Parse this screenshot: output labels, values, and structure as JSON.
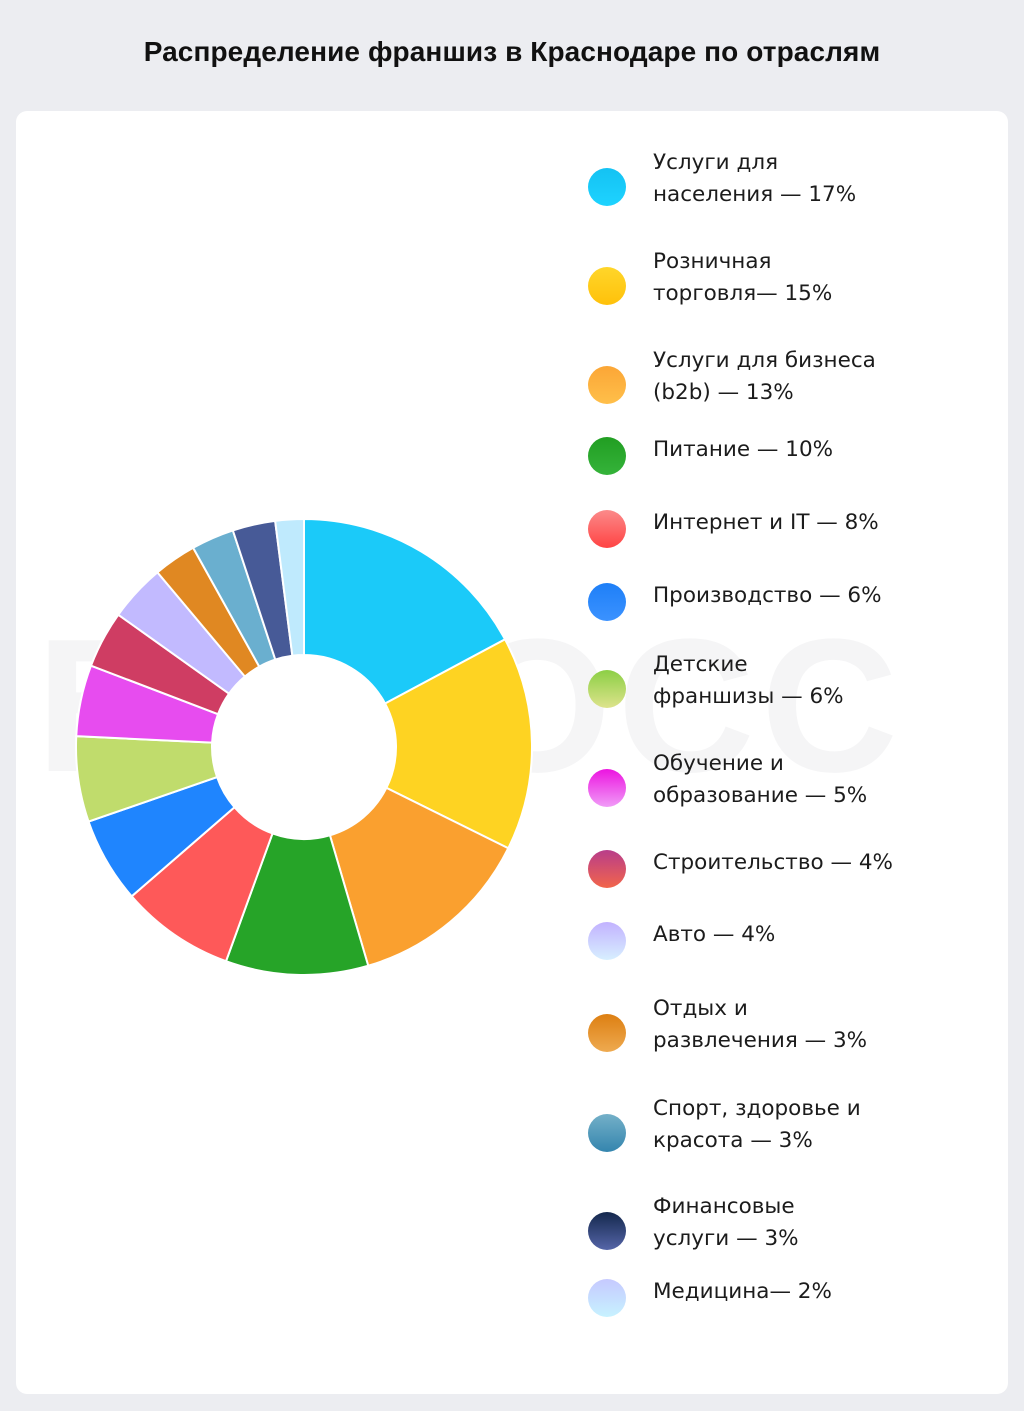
{
  "title": "Распределение франшиз в Краснодаре по отраслям",
  "watermark": "БИБОСС",
  "legend": [
    {
      "label": "Услуги для\nнаселения — 17%",
      "color_top": "#14c2f3",
      "color_bottom": "#1ed3ff",
      "lines": 2
    },
    {
      "label": "Розничная\nторговля— 15%",
      "color_top": "#ffd62a",
      "color_bottom": "#ffc10a",
      "lines": 2
    },
    {
      "label": "Услуги для бизнеса\n(b2b) — 13%",
      "color_top": "#fba636",
      "color_bottom": "#ffbf4a",
      "lines": 2
    },
    {
      "label": "Питание — 10%",
      "color_top": "#219e22",
      "color_bottom": "#35b33a",
      "lines": 1
    },
    {
      "label": "Интернет и IT — 8%",
      "color_top": "#fb8a8a",
      "color_bottom": "#ff4343",
      "lines": 1
    },
    {
      "label": "Производство — 6%",
      "color_top": "#1e7ff7",
      "color_bottom": "#3b92ff",
      "lines": 1
    },
    {
      "label": "Детские\nфраншизы — 6%",
      "color_top": "#8ccf45",
      "color_bottom": "#dde38c",
      "lines": 2
    },
    {
      "label": "Обучение и\nобразование — 5%",
      "color_top": "#ec14e0",
      "color_bottom": "#f09cf7",
      "lines": 2
    },
    {
      "label": "Строительство — 4%",
      "color_top": "#b83d8a",
      "color_bottom": "#f2654b",
      "lines": 1
    },
    {
      "label": "Авто — 4%",
      "color_top": "#c2b2ff",
      "color_bottom": "#d7efff",
      "lines": 1
    },
    {
      "label": "Отдых и\nразвлечения — 3%",
      "color_top": "#dd7f12",
      "color_bottom": "#eeaa50",
      "lines": 2
    },
    {
      "label": "Спорт, здоровье и\nкрасота — 3%",
      "color_top": "#74b0c8",
      "color_bottom": "#3485ae",
      "lines": 2
    },
    {
      "label": "Финансовые\nуслуги — 3%",
      "color_top": "#14284d",
      "color_bottom": "#5565a8",
      "lines": 2
    },
    {
      "label": "Медицина— 2%",
      "color_top": "#c6c9ff",
      "color_bottom": "#c7f2ff",
      "lines": 1
    }
  ],
  "chart_data": {
    "type": "pie",
    "variant": "donut",
    "title": "Распределение франшиз в Краснодаре по отраслям",
    "categories": [
      "Услуги для населения",
      "Розничная торговля",
      "Услуги для бизнеса (b2b)",
      "Питание",
      "Интернет и IT",
      "Производство",
      "Детские франшизы",
      "Обучение и образование",
      "Строительство",
      "Авто",
      "Отдых и развлечения",
      "Спорт, здоровье и красота",
      "Финансовые услуги",
      "Медицина"
    ],
    "values": [
      17,
      15,
      13,
      10,
      8,
      6,
      6,
      5,
      4,
      4,
      3,
      3,
      3,
      2
    ],
    "unit": "%",
    "slice_colors": [
      "#1bcaf9",
      "#fed322",
      "#faa02f",
      "#26a428",
      "#fe5959",
      "#1f85fe",
      "#c0dc6c",
      "#e74cef",
      "#cf3d63",
      "#c2baff",
      "#e08822",
      "#6aafcf",
      "#475a97",
      "#bfeafd"
    ],
    "start_angle_deg": 0,
    "direction": "clockwise",
    "legend_position": "right",
    "inner_radius_ratio": 0.4
  }
}
